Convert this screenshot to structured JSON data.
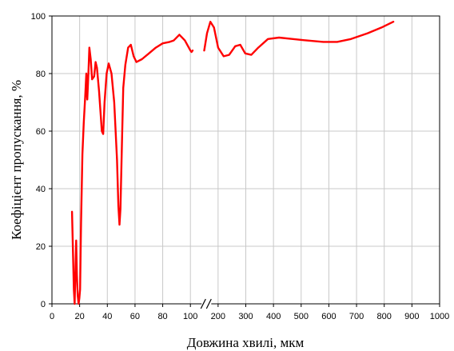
{
  "chart_data": {
    "type": "line",
    "title": "",
    "xlabel": "Довжина хвилі, мкм",
    "ylabel": "Коефіцієнт пропускання, %",
    "ylim": [
      0,
      100
    ],
    "yticks": [
      "0",
      "20",
      "40",
      "60",
      "80",
      "100"
    ],
    "xticks": [
      "0",
      "20",
      "40",
      "60",
      "80",
      "100",
      "200",
      "300",
      "400",
      "500",
      "600",
      "700",
      "800",
      "900",
      "1000"
    ],
    "x_axis_break": "after 110 µm — left part linear 0–110 µm, right part linear 110–1000 µm",
    "grid": true,
    "legend": "none",
    "color": "#ff0000",
    "series": [
      {
        "segment": "0-110",
        "points": [
          [
            14.5,
            32
          ],
          [
            15.2,
            18
          ],
          [
            15.8,
            5
          ],
          [
            16.4,
            0
          ],
          [
            17.0,
            12
          ],
          [
            17.5,
            22
          ],
          [
            18.0,
            10
          ],
          [
            18.6,
            3
          ],
          [
            19.2,
            0
          ],
          [
            19.8,
            2
          ],
          [
            20.3,
            5
          ],
          [
            21.0,
            28
          ],
          [
            22.0,
            52
          ],
          [
            23.0,
            63
          ],
          [
            24.0,
            72
          ],
          [
            24.8,
            80
          ],
          [
            25.5,
            71
          ],
          [
            26.3,
            80
          ],
          [
            27.0,
            89
          ],
          [
            28.0,
            85
          ],
          [
            29.0,
            78
          ],
          [
            30.5,
            79
          ],
          [
            31.5,
            84
          ],
          [
            32.5,
            82
          ],
          [
            34.0,
            74
          ],
          [
            36.0,
            60
          ],
          [
            37.0,
            59
          ],
          [
            38.0,
            70
          ],
          [
            39.5,
            80
          ],
          [
            41.0,
            83.5
          ],
          [
            43.0,
            80
          ],
          [
            45.0,
            70
          ],
          [
            47.0,
            50
          ],
          [
            48.0,
            34
          ],
          [
            48.8,
            27.5
          ],
          [
            49.5,
            33
          ],
          [
            50.5,
            55
          ],
          [
            51.5,
            75
          ],
          [
            53.0,
            83
          ],
          [
            55.0,
            89
          ],
          [
            57.0,
            90
          ],
          [
            59.0,
            86
          ],
          [
            61.0,
            84
          ],
          [
            65.0,
            85
          ],
          [
            70.0,
            87
          ],
          [
            75.0,
            89
          ],
          [
            80.0,
            90.5
          ],
          [
            85.0,
            91
          ],
          [
            88.0,
            91.5
          ],
          [
            92.0,
            93.5
          ],
          [
            96.0,
            91.5
          ],
          [
            100.0,
            88
          ],
          [
            104.0,
            87.5
          ],
          [
            108.0,
            88
          ]
        ]
      },
      {
        "segment": "110-1000",
        "points": [
          [
            150,
            88
          ],
          [
            160,
            94
          ],
          [
            172,
            98
          ],
          [
            185,
            96
          ],
          [
            200,
            89
          ],
          [
            220,
            86
          ],
          [
            240,
            86.5
          ],
          [
            262,
            89.5
          ],
          [
            280,
            90
          ],
          [
            298,
            87
          ],
          [
            320,
            86.5
          ],
          [
            345,
            89
          ],
          [
            380,
            92
          ],
          [
            420,
            92.5
          ],
          [
            470,
            92
          ],
          [
            520,
            91.5
          ],
          [
            580,
            91
          ],
          [
            630,
            91
          ],
          [
            680,
            92
          ],
          [
            740,
            94
          ],
          [
            790,
            96
          ],
          [
            833,
            98
          ]
        ]
      }
    ]
  }
}
